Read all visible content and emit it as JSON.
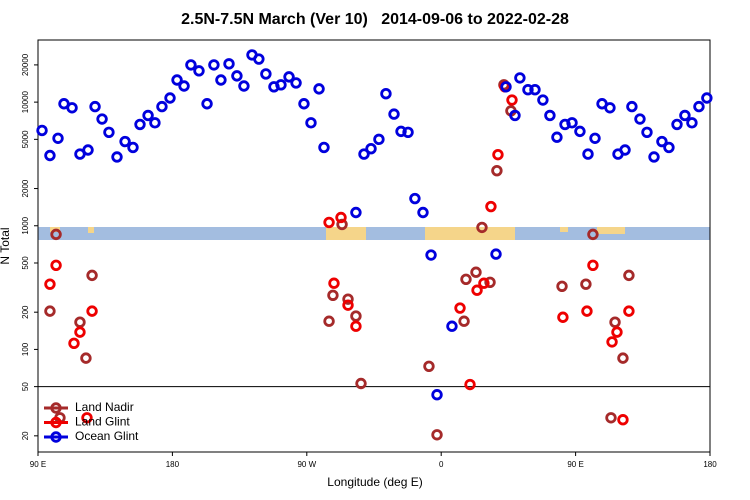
{
  "chart_data": {
    "type": "scatter",
    "title": "2.5N-7.5N March (Ver 10)   2014-09-06 to 2022-02-28",
    "xlabel": "Longitude (deg E)",
    "ylabel": "N Total",
    "xlim": [
      90,
      540
    ],
    "xticks": [
      {
        "value": 90,
        "label": "90 E"
      },
      {
        "value": 180,
        "label": "180"
      },
      {
        "value": 270,
        "label": "90 W"
      },
      {
        "value": 360,
        "label": "0"
      },
      {
        "value": 450,
        "label": "90 E"
      },
      {
        "value": 540,
        "label": "180"
      }
    ],
    "ylim": [
      14.8,
      31800
    ],
    "yscale": "log",
    "yticks": [
      20,
      50,
      100,
      200,
      500,
      1000,
      2000,
      5000,
      10000,
      20000
    ],
    "reference_line": 50,
    "legend": "lower left",
    "series": [
      {
        "name": "Land Nadir",
        "color": "#a52a2a",
        "x": [
          98.0,
          102.1,
          118.1,
          122.1,
          126.2,
          104.7,
          284.9,
          287.5,
          293.6,
          297.6,
          302.9,
          306.3,
          351.8,
          357.2,
          375.3,
          376.6,
          383.3,
          387.3,
          392.7,
          397.3,
          402.0,
          406.7,
          440.9,
          456.9,
          461.6,
          476.4,
          481.7,
          485.7,
          473.7
        ],
        "values": [
          204,
          852,
          166,
          85,
          397,
          28,
          169,
          274,
          1025,
          255,
          186,
          53,
          73,
          20.4,
          169,
          369,
          421,
          970,
          349,
          2790,
          13800,
          8500,
          324,
          337,
          852,
          166,
          85,
          397,
          28
        ]
      },
      {
        "name": "Land Glint",
        "color": "#ee0000",
        "x": [
          98.0,
          102.1,
          114.1,
          118.1,
          126.2,
          122.8,
          284.9,
          288.2,
          292.9,
          297.6,
          302.9,
          372.6,
          379.3,
          384.0,
          388.6,
          393.3,
          398.0,
          402.7,
          407.4,
          441.5,
          457.6,
          461.6,
          474.4,
          477.7,
          481.7,
          485.7
        ],
        "values": [
          337,
          479,
          112,
          138,
          204,
          28,
          1064,
          343,
          1167,
          228,
          154,
          216,
          52,
          301,
          343,
          1430,
          3760,
          13300,
          10400,
          182,
          204,
          479,
          115,
          138,
          27,
          204
        ]
      },
      {
        "name": "Ocean Glint",
        "color": "#0000dd",
        "x": [
          92.7,
          98.0,
          103.4,
          107.4,
          112.8,
          118.1,
          123.5,
          128.2,
          132.9,
          137.5,
          142.9,
          148.3,
          153.6,
          158.3,
          163.7,
          168.3,
          173.0,
          178.4,
          183.1,
          187.8,
          192.4,
          197.8,
          203.2,
          207.8,
          212.5,
          217.9,
          223.2,
          227.9,
          233.3,
          237.9,
          242.6,
          248.0,
          252.7,
          258.1,
          262.8,
          268.1,
          272.8,
          278.2,
          281.5,
          302.9,
          308.3,
          313.0,
          318.3,
          323.0,
          328.4,
          333.1,
          337.8,
          342.4,
          347.8,
          353.2,
          357.2,
          367.2,
          396.7,
          403.4,
          409.4,
          412.7,
          418.1,
          422.8,
          428.1,
          432.8,
          437.5,
          442.9,
          447.6,
          452.9,
          458.3,
          463.0,
          467.7,
          473.0,
          478.4,
          483.1,
          487.7,
          493.1,
          497.8,
          502.5,
          507.8,
          512.5,
          517.9,
          523.2,
          527.9,
          532.6,
          537.9
        ],
        "values": [
          5900,
          3700,
          5100,
          9700,
          9000,
          3800,
          4100,
          9200,
          7300,
          5700,
          3600,
          4800,
          4300,
          6600,
          7800,
          6800,
          9200,
          10800,
          15100,
          13500,
          20000,
          17900,
          9700,
          20000,
          15100,
          20400,
          16300,
          13500,
          24100,
          22300,
          16900,
          13300,
          13800,
          16000,
          14300,
          9700,
          6800,
          12800,
          4300,
          1280,
          3800,
          4200,
          5000,
          11700,
          8000,
          5800,
          5700,
          1660,
          1280,
          580,
          43,
          154,
          590,
          13300,
          7800,
          15700,
          12600,
          12600,
          10400,
          7800,
          5200,
          6600,
          6800,
          5800,
          3800,
          5100,
          9700,
          9000,
          3800,
          4100,
          9200,
          7300,
          5700,
          3600,
          4800,
          4300,
          6600,
          7800,
          6800,
          9200,
          10800
        ]
      }
    ]
  }
}
